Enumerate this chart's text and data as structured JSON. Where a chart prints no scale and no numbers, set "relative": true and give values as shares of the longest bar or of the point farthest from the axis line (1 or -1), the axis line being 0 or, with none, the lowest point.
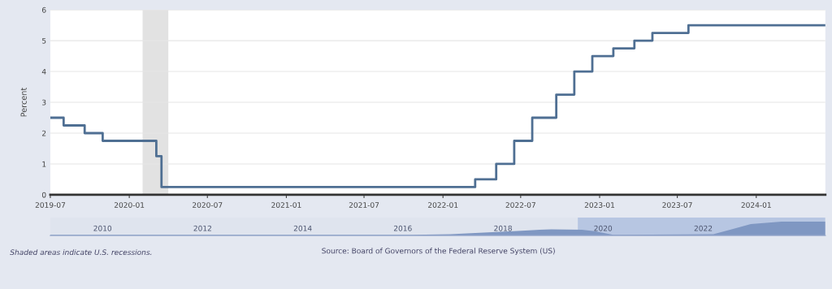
{
  "chart_data": [
    {
      "type": "step",
      "ylabel": "Percent",
      "x": [
        "2019-07-01",
        "2019-08-01",
        "2019-09-19",
        "2019-10-31",
        "2020-03-04",
        "2020-03-16",
        "2022-03-17",
        "2022-05-05",
        "2022-06-16",
        "2022-07-28",
        "2022-09-22",
        "2022-11-03",
        "2022-12-15",
        "2023-02-02",
        "2023-03-23",
        "2023-05-04",
        "2023-07-27",
        "2024-06-10"
      ],
      "series": [
        {
          "color": "#4f6f93",
          "values": [
            2.5,
            2.25,
            2.0,
            1.75,
            1.25,
            0.25,
            0.5,
            1.0,
            1.75,
            2.5,
            3.25,
            4.0,
            4.5,
            4.75,
            5.0,
            5.25,
            5.5,
            5.5
          ]
        }
      ],
      "xlim": [
        "2019-07-01",
        "2024-06-10"
      ],
      "xticks": [
        {
          "value": "2019-07-01",
          "label": "2019-07"
        },
        {
          "value": "2020-01-01",
          "label": "2020-01"
        },
        {
          "value": "2020-07-01",
          "label": "2020-07"
        },
        {
          "value": "2021-01-01",
          "label": "2021-01"
        },
        {
          "value": "2021-07-01",
          "label": "2021-07"
        },
        {
          "value": "2022-01-01",
          "label": "2022-01"
        },
        {
          "value": "2022-07-01",
          "label": "2022-07"
        },
        {
          "value": "2023-01-01",
          "label": "2023-01"
        },
        {
          "value": "2023-07-01",
          "label": "2023-07"
        },
        {
          "value": "2024-01-01",
          "label": "2024-01"
        }
      ],
      "ylim": [
        0,
        6
      ],
      "yticks": [
        0,
        1,
        2,
        3,
        4,
        5,
        6
      ],
      "grid": "y",
      "line_style": "solid",
      "marker": "none",
      "bands": [
        {
          "axis": "x",
          "from": "2020-02-01",
          "to": "2020-04-01",
          "color": "#e2e2e2"
        }
      ],
      "annotations": [
        "Shaded areas indicate U.S. recessions.",
        "Source: Board of Governors of the Federal Reserve System (US)"
      ]
    },
    {
      "type": "area",
      "relative": true,
      "x": [
        "2008-12-16",
        "2015-12-16",
        "2016-12-14",
        "2017-03-15",
        "2017-06-14",
        "2017-12-13",
        "2018-03-21",
        "2018-06-13",
        "2018-09-26",
        "2018-12-19",
        "2019-07-31",
        "2019-10-30",
        "2020-03-15",
        "2022-03-16",
        "2022-07-27",
        "2022-12-14",
        "2023-07-26",
        "2024-06-10"
      ],
      "series": [
        {
          "color": "#7f97c2",
          "values": [
            0.045,
            0.045,
            0.09,
            0.14,
            0.18,
            0.27,
            0.32,
            0.36,
            0.41,
            0.45,
            0.41,
            0.32,
            0.045,
            0.09,
            0.45,
            0.82,
            1,
            1
          ]
        }
      ],
      "xlim": [
        "2008-12-16",
        "2024-06-10"
      ],
      "xticks": [
        {
          "value": "2010-01-01",
          "label": "2010"
        },
        {
          "value": "2012-01-01",
          "label": "2012"
        },
        {
          "value": "2014-01-01",
          "label": "2014"
        },
        {
          "value": "2016-01-01",
          "label": "2016"
        },
        {
          "value": "2018-01-01",
          "label": "2018"
        },
        {
          "value": "2020-01-01",
          "label": "2020"
        },
        {
          "value": "2022-01-01",
          "label": "2022"
        }
      ],
      "tick_labels": "x",
      "bands": [
        {
          "axis": "x",
          "from": "2019-07-01",
          "to": "2024-06-10",
          "color": "#b7c6e2"
        }
      ]
    }
  ]
}
